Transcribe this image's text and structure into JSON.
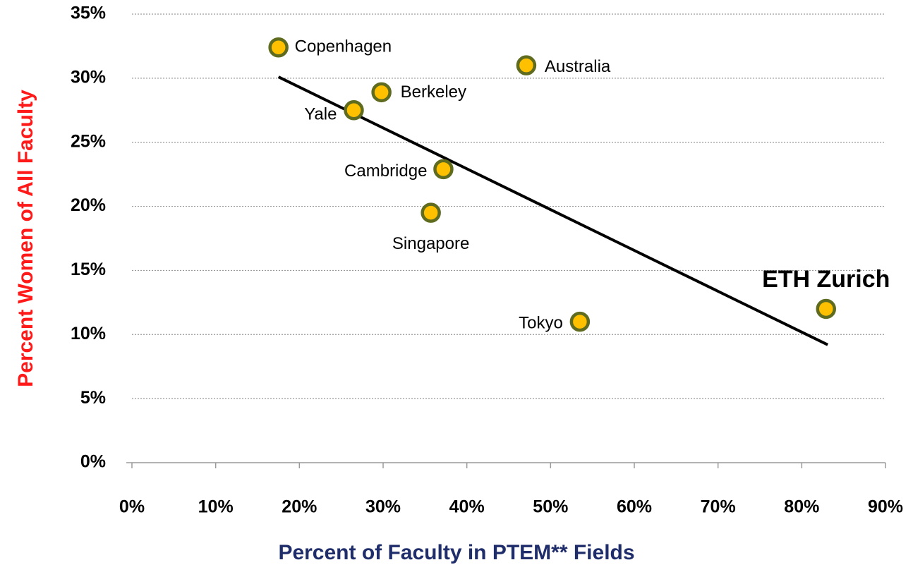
{
  "chart_data": {
    "type": "scatter",
    "x_label": "Percent of Faculty in PTEM** Fields",
    "y_label": "Percent Women of All Faculty",
    "labels": [
      "Copenhagen",
      "Australia",
      "Berkeley",
      "Yale",
      "Cambridge",
      "Singapore",
      "Tokyo",
      "ETH Zurich"
    ],
    "x": [
      17.5,
      47.1,
      29.8,
      26.5,
      37.2,
      35.7,
      53.5,
      82.9
    ],
    "y": [
      32.4,
      31.0,
      28.9,
      27.5,
      22.9,
      19.5,
      11.0,
      12.0
    ],
    "color": "#ffc000",
    "edge_color": "#5f6b1f",
    "trendline": {
      "x": [
        17.5,
        83.1
      ],
      "y": [
        30.1,
        9.2
      ],
      "color": "#000000"
    },
    "xlim": [
      0,
      90
    ],
    "ylim": [
      0,
      35
    ],
    "xticks": [
      {
        "value": 0,
        "label": "0%"
      },
      {
        "value": 10,
        "label": "10%"
      },
      {
        "value": 20,
        "label": "20%"
      },
      {
        "value": 30,
        "label": "30%"
      },
      {
        "value": 40,
        "label": "40%"
      },
      {
        "value": 50,
        "label": "50%"
      },
      {
        "value": 60,
        "label": "60%"
      },
      {
        "value": 70,
        "label": "70%"
      },
      {
        "value": 80,
        "label": "80%"
      },
      {
        "value": 90,
        "label": "90%"
      }
    ],
    "yticks": [
      {
        "value": 0,
        "label": "0%"
      },
      {
        "value": 5,
        "label": "5%"
      },
      {
        "value": 10,
        "label": "10%"
      },
      {
        "value": 15,
        "label": "15%"
      },
      {
        "value": 20,
        "label": "20%"
      },
      {
        "value": 25,
        "label": "25%"
      },
      {
        "value": 30,
        "label": "30%"
      },
      {
        "value": 35,
        "label": "35%"
      }
    ],
    "grid": true
  }
}
